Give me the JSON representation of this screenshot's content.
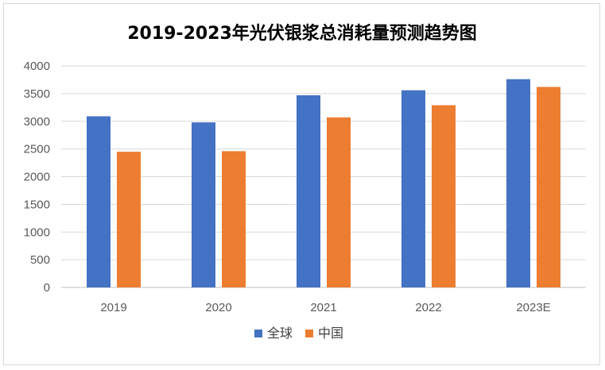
{
  "chart_data": {
    "type": "bar",
    "title": "2019-2023年光伏银浆总消耗量预测趋势图",
    "xlabel": "",
    "ylabel": "",
    "categories": [
      "2019",
      "2020",
      "2021",
      "2022",
      "2023E"
    ],
    "series": [
      {
        "name": "全球",
        "values": [
          3090,
          2980,
          3470,
          3560,
          3760
        ],
        "color": "#4472C4"
      },
      {
        "name": "中国",
        "values": [
          2450,
          2460,
          3070,
          3290,
          3620
        ],
        "color": "#ED7D31"
      }
    ],
    "ylim": [
      0,
      4000
    ],
    "yticks": [
      "0",
      "500",
      "1000",
      "1500",
      "2000",
      "2500",
      "3000",
      "3500",
      "4000"
    ],
    "grid": true,
    "legend_position": "bottom"
  }
}
